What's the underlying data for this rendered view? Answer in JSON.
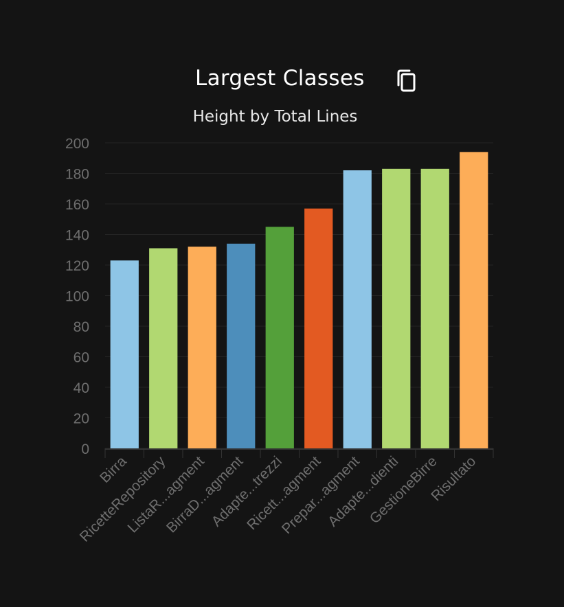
{
  "chart_data": {
    "type": "bar",
    "title": "Largest Classes",
    "subtitle": "Height by Total Lines",
    "categories": [
      "Birra",
      "RicetteRepository",
      "ListaR...agment",
      "BirraD...agment",
      "Adapte...trezzi",
      "Ricett...agment",
      "Prepar...agment",
      "Adapte...dienti",
      "GestioneBirre",
      "Risultato"
    ],
    "values": [
      123,
      131,
      132,
      134,
      145,
      157,
      182,
      183,
      183,
      194
    ],
    "colors": [
      "#8ec5e6",
      "#b1d871",
      "#fdad58",
      "#4d8ebb",
      "#54a03a",
      "#e35a22",
      "#8ec5e6",
      "#b1d871",
      "#b1d871",
      "#fdad58"
    ],
    "yticks": [
      0,
      20,
      40,
      60,
      80,
      100,
      120,
      140,
      160,
      180,
      200
    ],
    "ylim": [
      0,
      200
    ],
    "xlabel": "",
    "ylabel": "",
    "grid": true
  },
  "toolbar": {
    "copy_icon": "copy-icon"
  }
}
